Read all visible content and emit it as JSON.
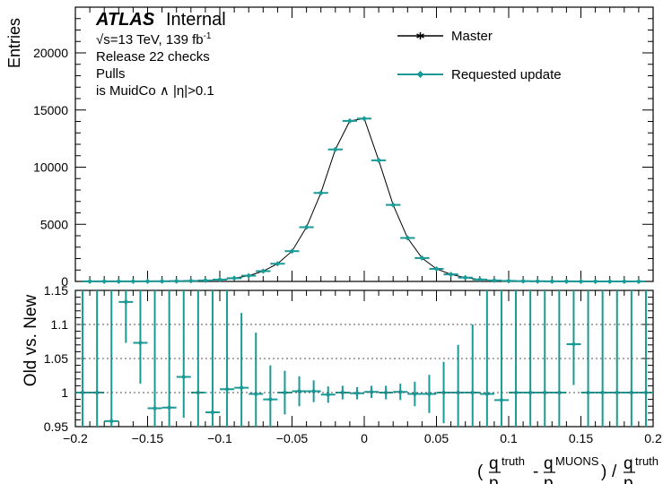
{
  "chart_data": [
    {
      "type": "scatter",
      "panel": "top",
      "ylabel": "Entries",
      "xlim": [
        -0.2,
        0.2
      ],
      "ylim": [
        0,
        24000
      ],
      "yticks": [
        0,
        5000,
        10000,
        15000,
        20000
      ],
      "ytick_labels": [
        "0",
        "5000",
        "10000",
        "15000",
        "20000"
      ],
      "annotations": {
        "experiment": "ATLAS",
        "status": "Internal",
        "energy": "√s=13 TeV, 139 fb",
        "energy_sup": "-1",
        "line2": "Release 22 checks",
        "line3": "Pulls",
        "line4": "is MuidCo ∧ |η|>0.1"
      },
      "legend_position": "top-right",
      "series": [
        {
          "name": "Master",
          "color": "#000000",
          "x": [
            -0.19,
            -0.18,
            -0.17,
            -0.16,
            -0.15,
            -0.14,
            -0.13,
            -0.12,
            -0.11,
            -0.1,
            -0.09,
            -0.08,
            -0.07,
            -0.06,
            -0.05,
            -0.04,
            -0.03,
            -0.02,
            -0.01,
            0.0,
            0.01,
            0.02,
            0.03,
            0.04,
            0.05,
            0.06,
            0.07,
            0.08,
            0.09,
            0.1,
            0.11,
            0.12,
            0.13,
            0.14,
            0.15,
            0.16,
            0.17,
            0.18,
            0.19
          ],
          "values": [
            5,
            6,
            8,
            10,
            14,
            20,
            30,
            50,
            90,
            160,
            280,
            500,
            900,
            1550,
            2650,
            4750,
            7750,
            11550,
            14050,
            14250,
            10600,
            6700,
            3800,
            2050,
            1100,
            620,
            330,
            170,
            90,
            50,
            28,
            16,
            10,
            6,
            4,
            3,
            2,
            2,
            1
          ]
        },
        {
          "name": "Requested update",
          "color": "#1a9a96",
          "x": [
            -0.19,
            -0.18,
            -0.17,
            -0.16,
            -0.15,
            -0.14,
            -0.13,
            -0.12,
            -0.11,
            -0.1,
            -0.09,
            -0.08,
            -0.07,
            -0.06,
            -0.05,
            -0.04,
            -0.03,
            -0.02,
            -0.01,
            0.0,
            0.01,
            0.02,
            0.03,
            0.04,
            0.05,
            0.06,
            0.07,
            0.08,
            0.09,
            0.1,
            0.11,
            0.12,
            0.13,
            0.14,
            0.15,
            0.16,
            0.17,
            0.18,
            0.19
          ],
          "values": [
            5,
            6,
            8,
            10,
            14,
            20,
            30,
            50,
            90,
            160,
            280,
            500,
            900,
            1550,
            2650,
            4750,
            7750,
            11550,
            14050,
            14250,
            10600,
            6700,
            3800,
            2050,
            1100,
            620,
            330,
            170,
            90,
            50,
            28,
            16,
            10,
            6,
            4,
            3,
            2,
            2,
            1
          ]
        }
      ]
    },
    {
      "type": "scatter",
      "panel": "bottom",
      "ylabel": "Old vs. New",
      "xlabel": "(q/p^truth - q/p^MUONS) / q/p^truth",
      "xlabel_parts": {
        "open": "(",
        "q": "q",
        "p": "p",
        "truth": "truth",
        "minus": "-",
        "muons": "MUONS",
        "close": ")",
        "slash": "/"
      },
      "xlim": [
        -0.2,
        0.2
      ],
      "ylim": [
        0.95,
        1.15
      ],
      "xticks": [
        -0.2,
        -0.15,
        -0.1,
        -0.05,
        0,
        0.05,
        0.1,
        0.15,
        0.2
      ],
      "xtick_labels": [
        "−0.2",
        "−0.15",
        "−0.1",
        "−0.05",
        "0",
        "0.05",
        "0.1",
        "0.15",
        "0.2"
      ],
      "yticks": [
        0.95,
        1,
        1.05,
        1.1,
        1.15
      ],
      "ytick_labels": [
        "0.95",
        "1",
        "1.05",
        "1.1",
        "1.15"
      ],
      "grid_y": [
        1,
        1.05,
        1.1
      ],
      "series": [
        {
          "name": "Requested update",
          "color": "#1a9a96",
          "x": [
            -0.195,
            -0.185,
            -0.175,
            -0.165,
            -0.155,
            -0.145,
            -0.135,
            -0.125,
            -0.115,
            -0.105,
            -0.095,
            -0.085,
            -0.075,
            -0.065,
            -0.055,
            -0.045,
            -0.035,
            -0.025,
            -0.015,
            -0.005,
            0.005,
            0.015,
            0.025,
            0.035,
            0.045,
            0.055,
            0.065,
            0.075,
            0.085,
            0.095,
            0.105,
            0.115,
            0.125,
            0.135,
            0.145,
            0.155,
            0.165,
            0.175,
            0.185,
            0.195
          ],
          "values": [
            1.0,
            1.0,
            0.958,
            1.133,
            1.073,
            0.977,
            0.978,
            1.023,
            1.0,
            0.971,
            1.005,
            1.007,
            0.998,
            0.99,
            1.0,
            1.002,
            1.002,
            0.997,
            1.0,
            0.999,
            1.001,
            1.0,
            1.001,
            0.998,
            0.998,
            1.0,
            1.0,
            1.0,
            0.998,
            0.989,
            1.0,
            1.0,
            1.0,
            1.0,
            1.071,
            1.0,
            1.0,
            1.0,
            1.0,
            1.0
          ],
          "err_low": [
            0.06,
            0.06,
            0.06,
            0.06,
            0.06,
            0.06,
            0.06,
            0.06,
            0.06,
            0.06,
            0.06,
            0.06,
            0.06,
            0.05,
            0.032,
            0.022,
            0.016,
            0.012,
            0.01,
            0.009,
            0.009,
            0.01,
            0.012,
            0.018,
            0.028,
            0.045,
            0.06,
            0.06,
            0.06,
            0.06,
            0.06,
            0.06,
            0.06,
            0.06,
            0.06,
            0.06,
            0.06,
            0.06,
            0.06,
            0.06
          ],
          "err_high": [
            0.3,
            0.3,
            0.3,
            0.3,
            0.3,
            0.3,
            0.3,
            0.3,
            0.3,
            0.3,
            0.3,
            0.11,
            0.09,
            0.05,
            0.032,
            0.022,
            0.016,
            0.012,
            0.01,
            0.009,
            0.009,
            0.01,
            0.012,
            0.018,
            0.028,
            0.045,
            0.07,
            0.1,
            0.3,
            0.3,
            0.3,
            0.3,
            0.3,
            0.3,
            0.3,
            0.3,
            0.3,
            0.3,
            0.3,
            0.3
          ]
        }
      ]
    }
  ]
}
